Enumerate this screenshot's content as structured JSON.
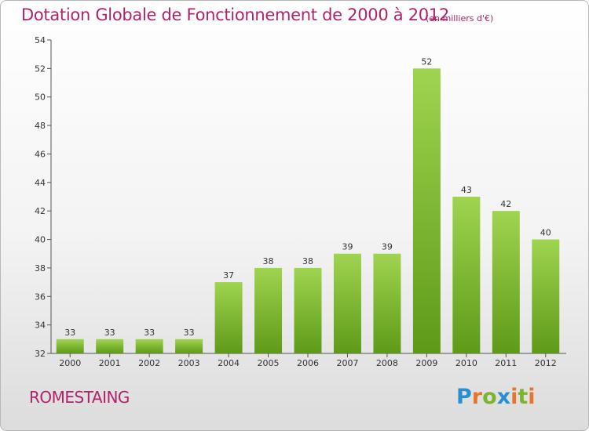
{
  "chart_data": {
    "type": "bar",
    "title": "Dotation Globale de Fonctionnement de 2000 à 2012",
    "subtitle": "(en milliers d'€)",
    "categories": [
      "2000",
      "2001",
      "2002",
      "2003",
      "2004",
      "2005",
      "2006",
      "2007",
      "2008",
      "2009",
      "2010",
      "2011",
      "2012"
    ],
    "values": [
      33,
      33,
      33,
      33,
      37,
      38,
      38,
      39,
      39,
      52,
      43,
      42,
      40
    ],
    "ylim": [
      32,
      54
    ],
    "yticks": [
      32,
      34,
      36,
      38,
      40,
      42,
      44,
      46,
      48,
      50,
      52,
      54
    ],
    "grid": false,
    "bar_color": "#7cb82f"
  },
  "commune": "ROMESTAING",
  "logo": {
    "letters": [
      "P",
      "r",
      "o",
      "x",
      "i",
      "t",
      "i"
    ],
    "colors": [
      "#2a8fd0",
      "#e8742a",
      "#7ab52e",
      "#2a8fd0",
      "#e8742a",
      "#7ab52e",
      "#e8742a"
    ]
  }
}
